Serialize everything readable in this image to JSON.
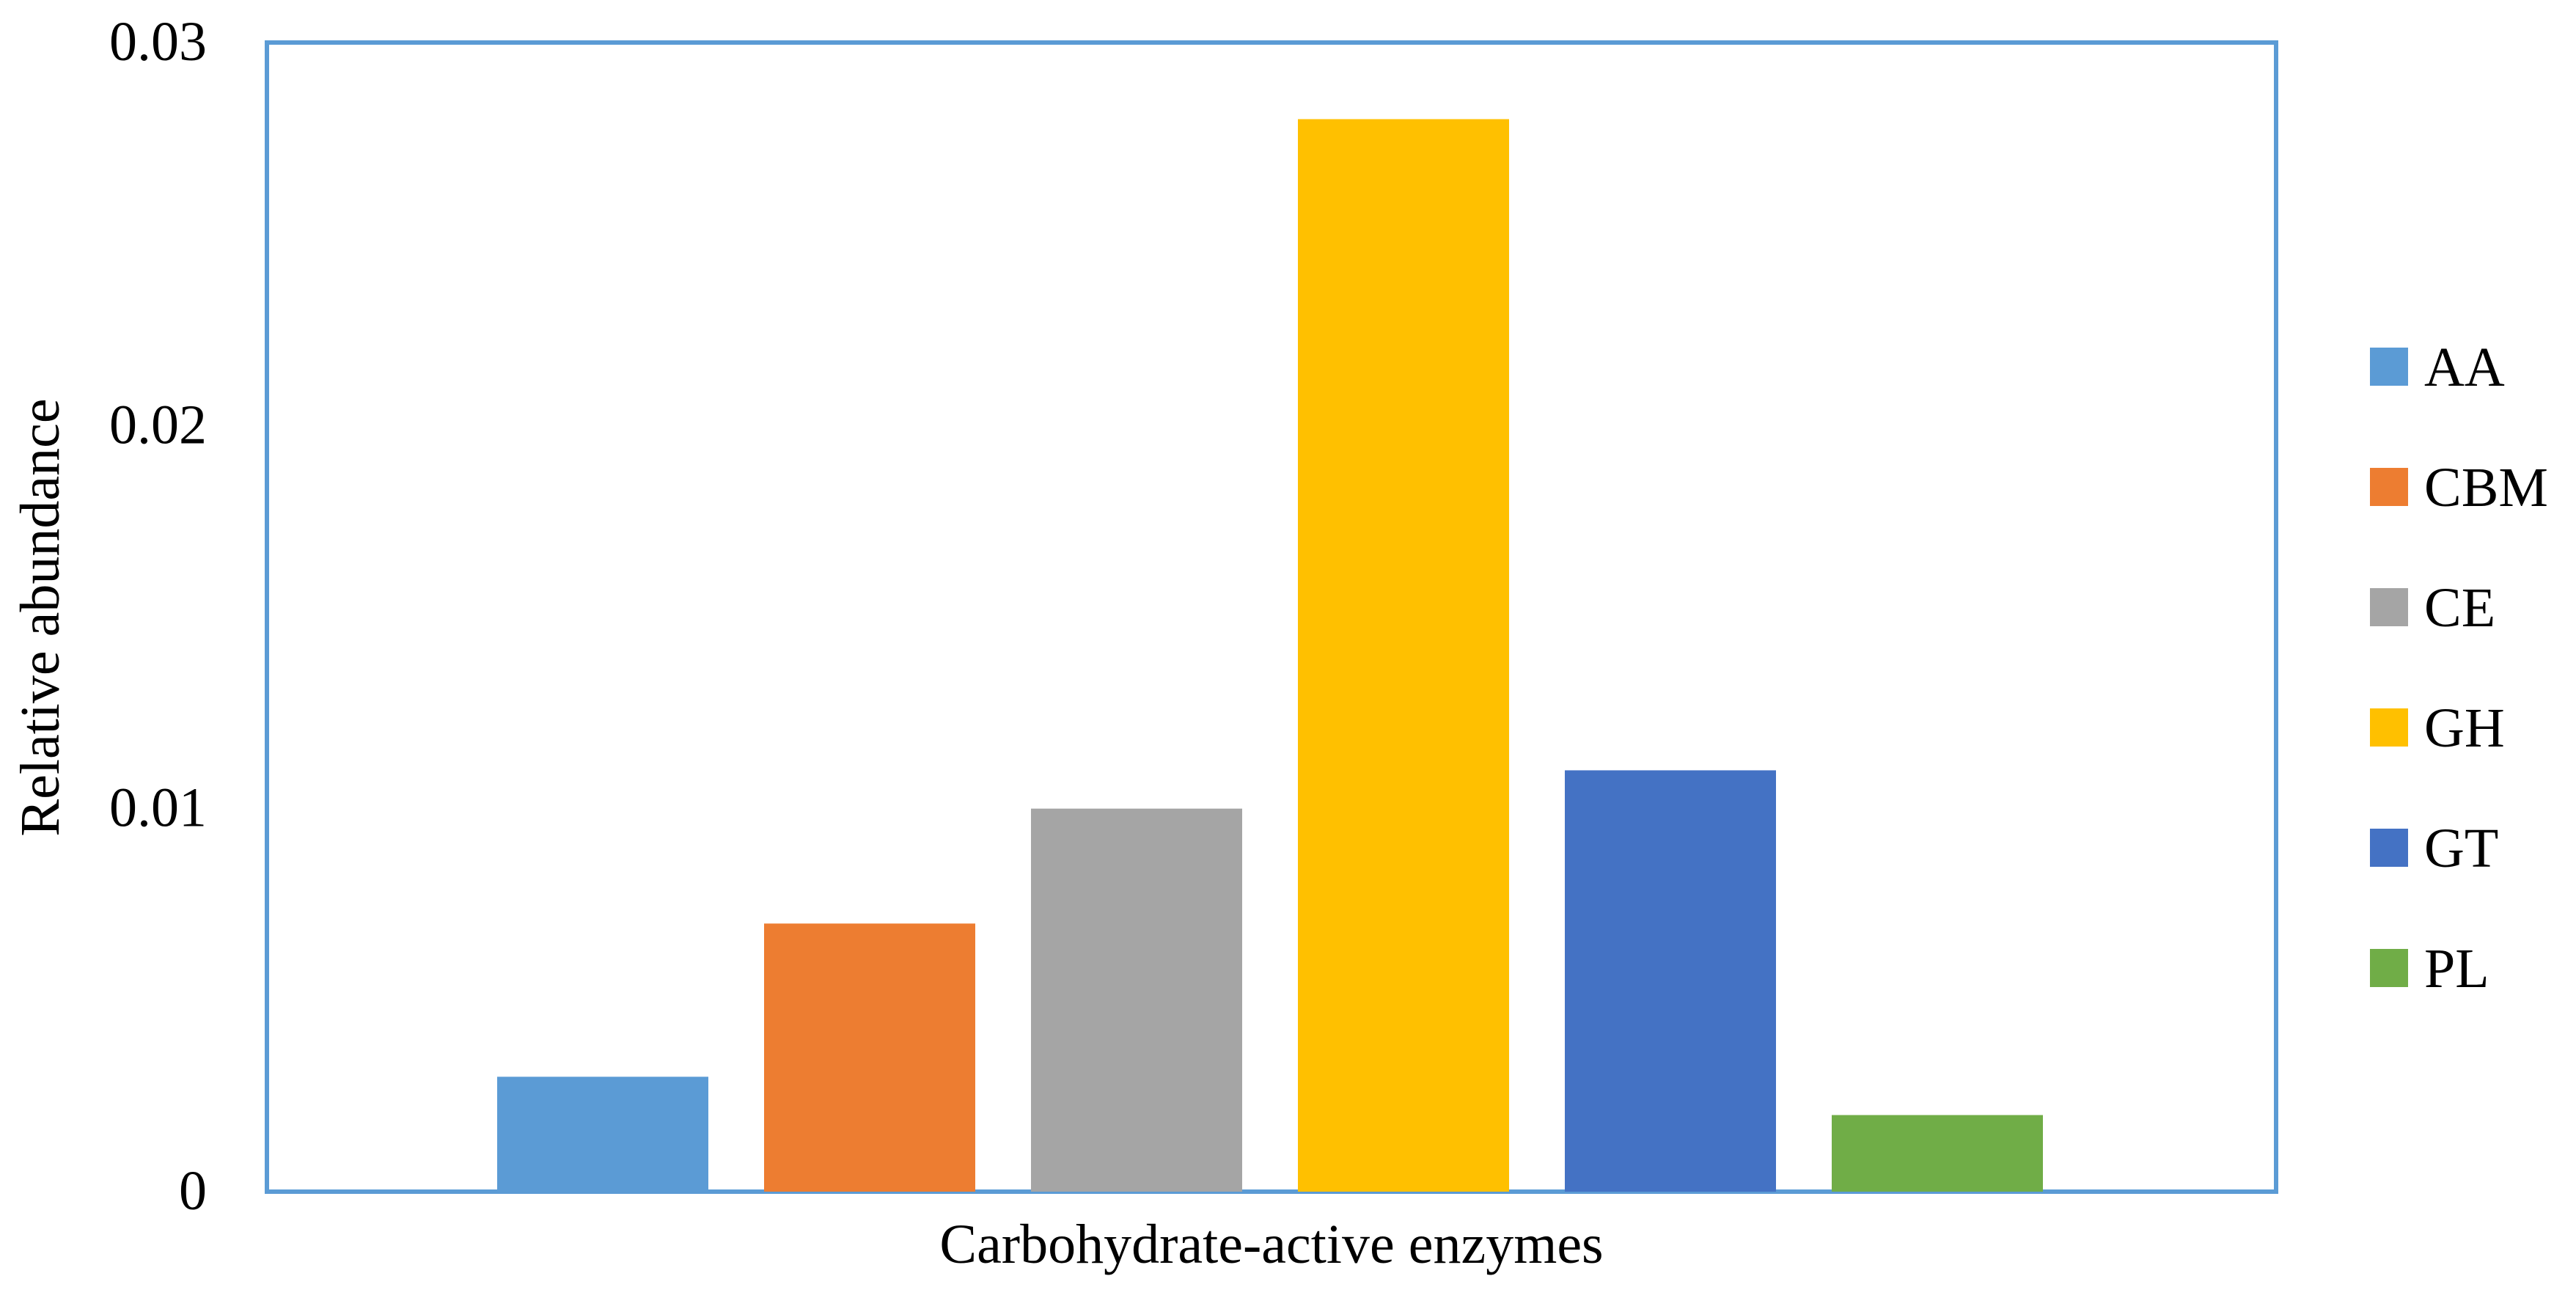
{
  "chart_data": {
    "type": "bar",
    "xlabel": "Carbohydrate-active enzymes",
    "ylabel": "Relative abundance",
    "ylim": [
      0,
      0.03
    ],
    "yticks": [
      "0",
      "0.01",
      "0.02",
      "0.03"
    ],
    "ytick_values": [
      0,
      0.01,
      0.02,
      0.03
    ],
    "grid": false,
    "legend_position": "right",
    "frame_color": "#5b9bd5",
    "series": [
      {
        "name": "AA",
        "value": 0.003,
        "color": "#5b9bd5"
      },
      {
        "name": "CBM",
        "value": 0.007,
        "color": "#ed7d31"
      },
      {
        "name": "CE",
        "value": 0.01,
        "color": "#a5a5a5"
      },
      {
        "name": "GH",
        "value": 0.028,
        "color": "#ffc000"
      },
      {
        "name": "GT",
        "value": 0.011,
        "color": "#4472c4"
      },
      {
        "name": "PL",
        "value": 0.002,
        "color": "#70ad47"
      }
    ]
  }
}
